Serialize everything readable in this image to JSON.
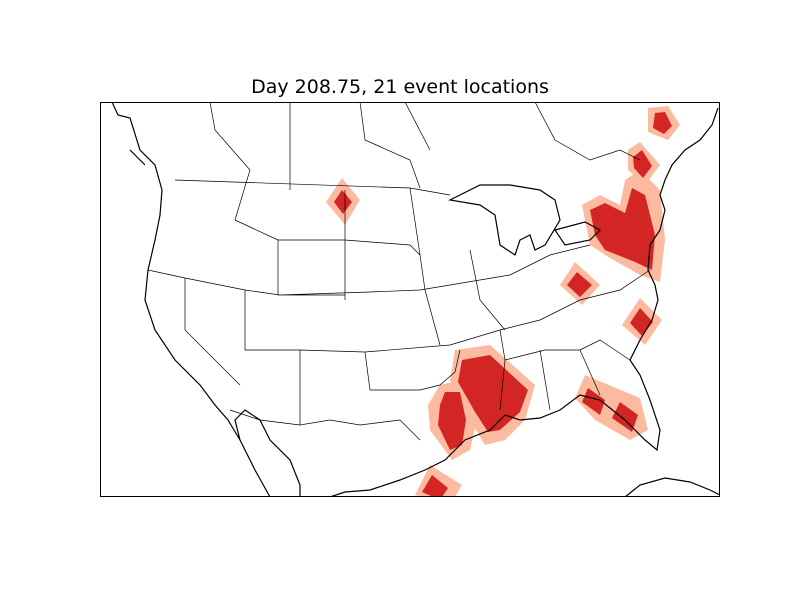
{
  "title": "Day 208.75, 21 event locations",
  "colors": {
    "event_core": "#d42525",
    "event_halo": "#fcbba1",
    "coastline": "#000000",
    "background": "#ffffff"
  }
}
